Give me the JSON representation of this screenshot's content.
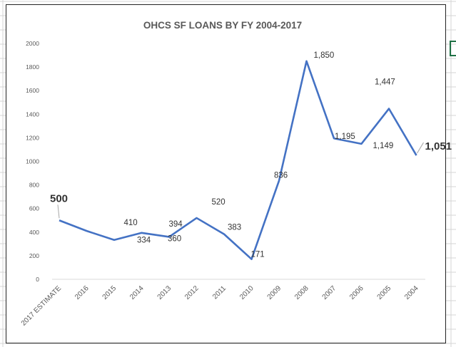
{
  "spreadsheet": {
    "grid_color": "#d4d4d4",
    "selected_cell_border_color": "#1e7145"
  },
  "chart_data": {
    "type": "line",
    "title": "OHCS SF LOANS BY FY 2004-2017",
    "categories": [
      "2017 ESTIMATE",
      "2016",
      "2015",
      "2014",
      "2013",
      "2012",
      "2011",
      "2010",
      "2009",
      "2008",
      "2007",
      "2006",
      "2005",
      "2004"
    ],
    "values": [
      500,
      410,
      334,
      394,
      360,
      520,
      383,
      171,
      836,
      1850,
      1195,
      1149,
      1447,
      1051
    ],
    "data_labels": [
      "500",
      "410",
      "334",
      "394",
      "360",
      "520",
      "383",
      "171",
      "836",
      "1,850",
      "1,195",
      "1,149",
      "1,447",
      "1,051"
    ],
    "y_ticks": [
      "0",
      "200",
      "400",
      "600",
      "800",
      "1000",
      "1200",
      "1400",
      "1600",
      "1800",
      "2000"
    ],
    "ylim": [
      0,
      2000
    ],
    "xlabel": "",
    "ylabel": "",
    "grid": false,
    "legend": "none",
    "line_color": "#4472c4"
  }
}
